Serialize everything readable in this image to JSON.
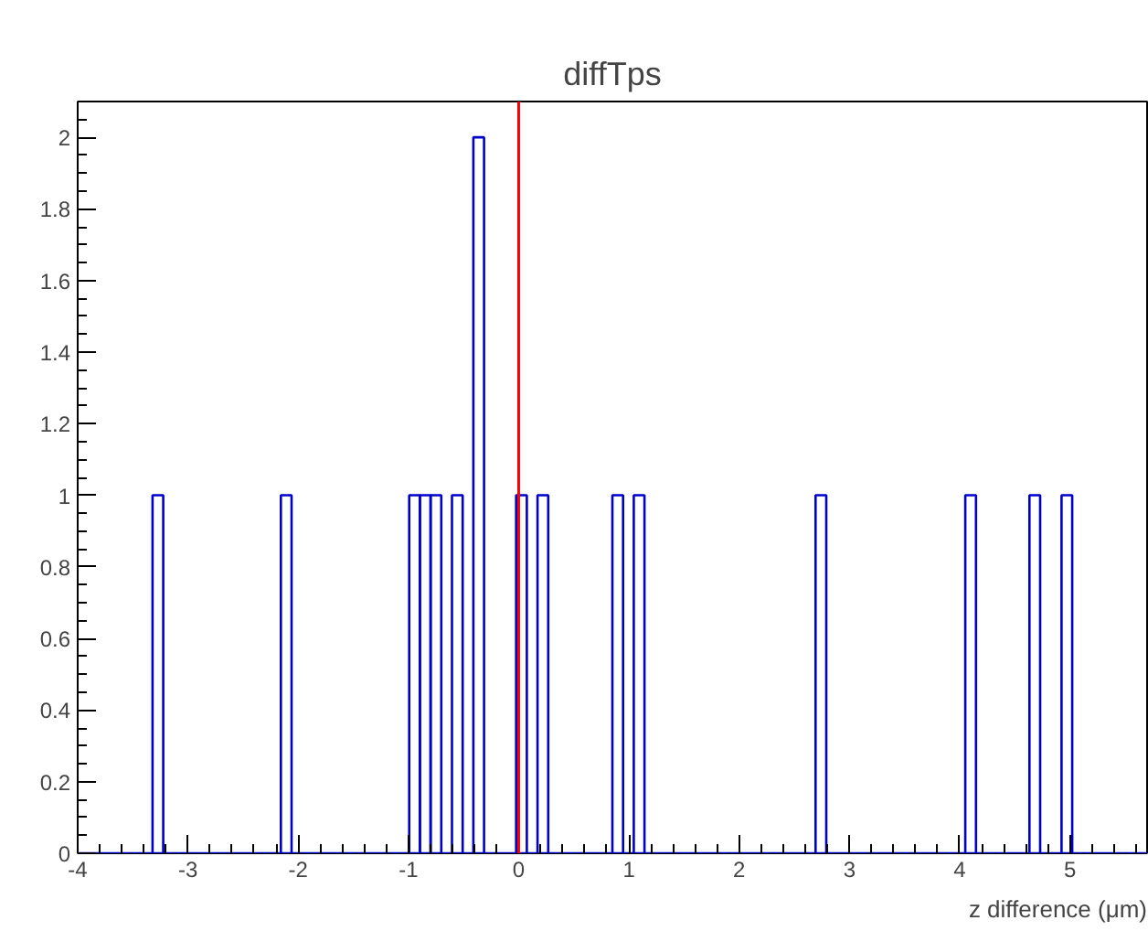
{
  "chart_data": {
    "type": "histogram",
    "title": "diffTps",
    "xlabel": "z difference (μm)",
    "color": "#0000cc",
    "bins": [
      -4,
      -3.903,
      -3.806,
      -3.709,
      -3.612,
      -3.515,
      -3.418,
      -3.321,
      -3.224,
      -3.127,
      -3.03,
      -2.933,
      -2.836,
      -2.739,
      -2.642,
      -2.545,
      -2.448,
      -2.351,
      -2.254,
      -2.157,
      -2.06,
      -1.963,
      -1.866,
      -1.769,
      -1.672,
      -1.575,
      -1.478,
      -1.381,
      -1.284,
      -1.187,
      -1.09,
      -0.993,
      -0.896,
      -0.799,
      -0.702,
      -0.605,
      -0.508,
      -0.411,
      -0.314,
      -0.217,
      -0.12,
      -0.023,
      0.074,
      0.171,
      0.268,
      0.365,
      0.462,
      0.559,
      0.656,
      0.753,
      0.85,
      0.947,
      1.044,
      1.141,
      1.238,
      1.335,
      1.432,
      1.529,
      1.626,
      1.723,
      1.82,
      1.917,
      2.014,
      2.111,
      2.208,
      2.305,
      2.402,
      2.499,
      2.596,
      2.693,
      2.79,
      2.887,
      2.984,
      3.081,
      3.178,
      3.275,
      3.372,
      3.469,
      3.566,
      3.663,
      3.76,
      3.857,
      3.954,
      4.051,
      4.148,
      4.245,
      4.342,
      4.439,
      4.536,
      4.633,
      4.73,
      4.827,
      4.924,
      5.021,
      5.118,
      5.215,
      5.312,
      5.409,
      5.506,
      5.603,
      5.7
    ],
    "values": [
      0,
      0,
      0,
      0,
      0,
      0,
      0,
      1,
      0,
      0,
      0,
      0,
      0,
      0,
      0,
      0,
      0,
      0,
      0,
      1,
      0,
      0,
      0,
      0,
      0,
      0,
      0,
      0,
      0,
      0,
      0,
      1,
      1,
      1,
      0,
      1,
      0,
      2,
      0,
      0,
      0,
      1,
      0,
      1,
      0,
      0,
      0,
      0,
      0,
      0,
      1,
      0,
      1,
      0,
      0,
      0,
      0,
      0,
      0,
      0,
      0,
      0,
      0,
      0,
      0,
      0,
      0,
      0,
      0,
      1,
      0,
      0,
      0,
      0,
      0,
      0,
      0,
      0,
      0,
      0,
      0,
      0,
      0,
      1,
      0,
      0,
      0,
      0,
      0,
      1,
      0,
      0,
      1,
      0,
      0,
      0,
      0,
      0,
      0,
      0
    ],
    "xlim": [
      -4,
      5.7
    ],
    "xticks": [
      -4,
      -3,
      -2,
      -1,
      0,
      1,
      2,
      3,
      4,
      5
    ],
    "ylim": [
      0,
      2.1
    ],
    "yticks": [
      0,
      0.2,
      0.4,
      0.6,
      0.8,
      1,
      1.2,
      1.4,
      1.6,
      1.8,
      2
    ],
    "ref_lines": [
      {
        "axis": "x",
        "value": 0,
        "color": "#ff0000"
      }
    ],
    "grid": false
  }
}
